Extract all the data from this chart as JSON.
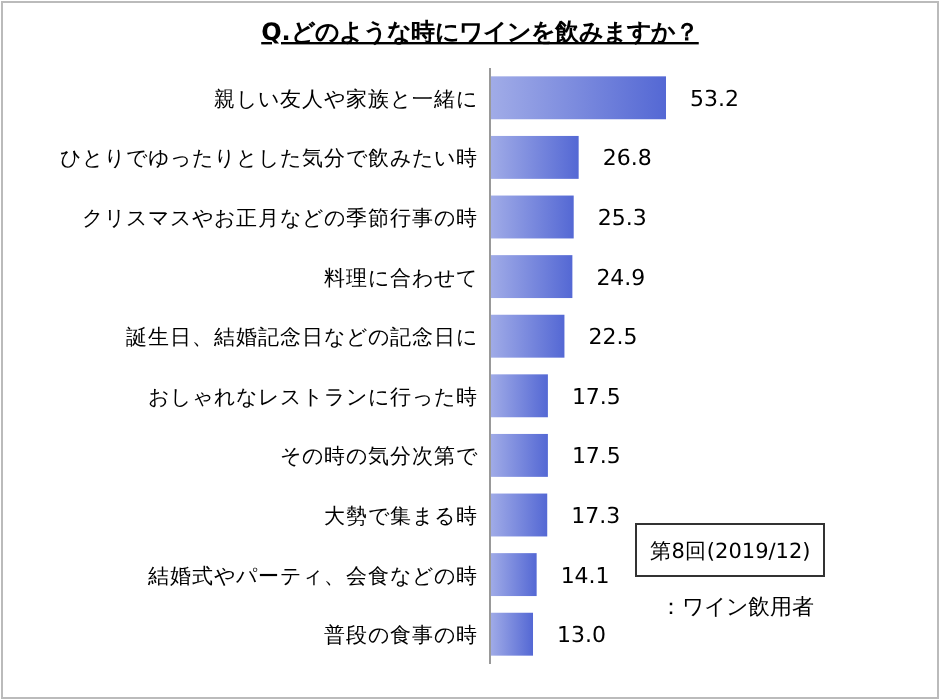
{
  "chart_data": {
    "type": "bar",
    "orientation": "horizontal",
    "title": "Q.どのような時にワインを飲みますか？",
    "categories": [
      "親しい友人や家族と一緒に",
      "ひとりでゆったりとした気分で飲みたい時",
      "クリスマスやお正月などの季節行事の時",
      "料理に合わせて",
      "誕生日、結婚記念日などの記念日に",
      "おしゃれなレストランに行った時",
      "その時の気分次第で",
      "大勢で集まる時",
      "結婚式やパーティ、会食などの時",
      "普段の食事の時"
    ],
    "values": [
      53.2,
      26.8,
      25.3,
      24.9,
      22.5,
      17.5,
      17.5,
      17.3,
      14.1,
      13.0
    ],
    "value_labels": [
      "53.2",
      "26.8",
      "25.3",
      "24.9",
      "22.5",
      "17.5",
      "17.5",
      "17.3",
      "14.1",
      "13.0"
    ],
    "color": "#5468d4",
    "annotations": [
      "第8回(2019/12)",
      "：ワイン飲用者"
    ]
  }
}
